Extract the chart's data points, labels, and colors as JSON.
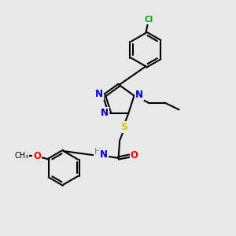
{
  "bg_color": "#e8e8e8",
  "bond_color": "#000000",
  "n_color": "#0000cd",
  "o_color": "#ff0000",
  "s_color": "#cccc00",
  "cl_color": "#00aa00",
  "lw": 1.5,
  "doff": 0.055,
  "xlim": [
    0,
    10
  ],
  "ylim": [
    0,
    10
  ]
}
